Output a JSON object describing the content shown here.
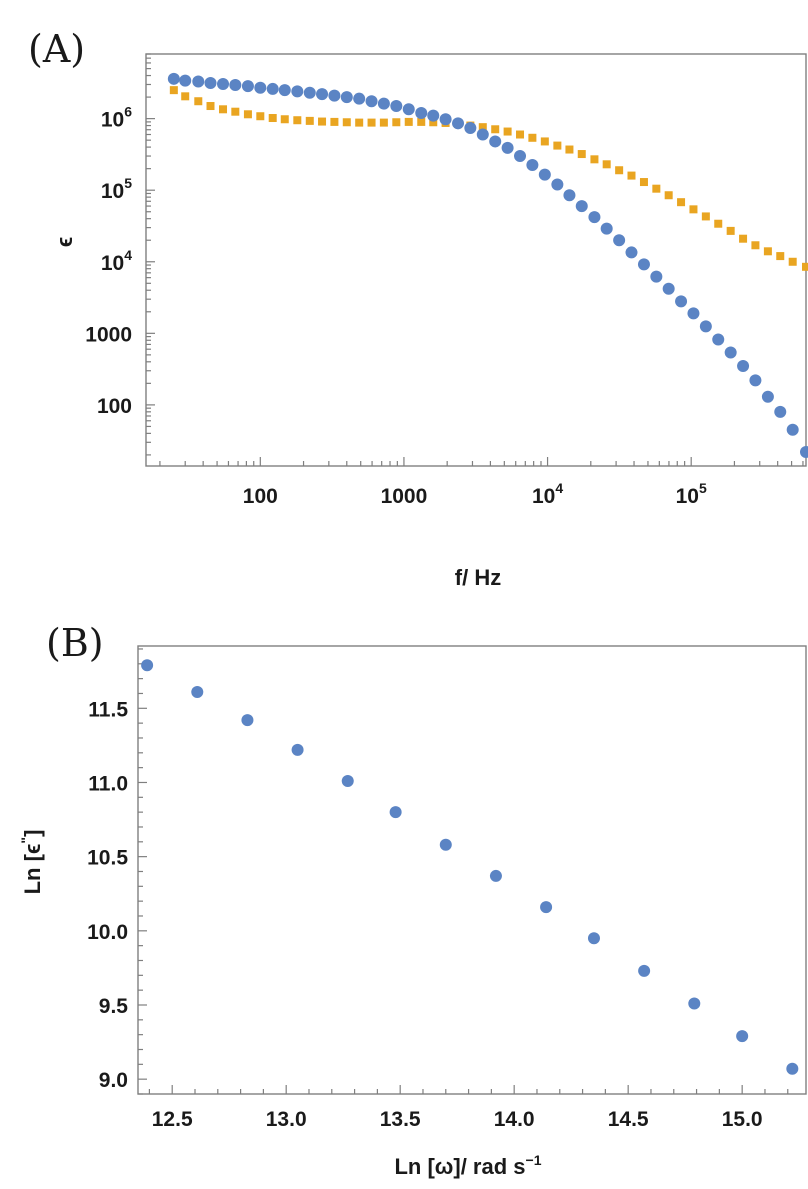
{
  "chart_data": [
    {
      "type": "scatter",
      "panel_label": "(A)",
      "xlabel": "f/ Hz",
      "ylabel": "ϵ",
      "xscale": "log",
      "yscale": "log",
      "xlim": [
        16,
        630000
      ],
      "ylim": [
        14,
        8000000
      ],
      "xticks": [
        {
          "value": 100,
          "base": "100",
          "sup": ""
        },
        {
          "value": 1000,
          "base": "1000",
          "sup": ""
        },
        {
          "value": 10000,
          "base": "10",
          "sup": "4"
        },
        {
          "value": 100000,
          "base": "10",
          "sup": "5"
        }
      ],
      "yticks": [
        {
          "value": 100,
          "base": "100",
          "sup": ""
        },
        {
          "value": 1000,
          "base": "1000",
          "sup": ""
        },
        {
          "value": 10000,
          "base": "10",
          "sup": "4"
        },
        {
          "value": 100000,
          "base": "10",
          "sup": "5"
        },
        {
          "value": 1000000,
          "base": "10",
          "sup": "6"
        }
      ],
      "colors": {
        "series1": "#5b84c4",
        "series2": "#e9a521"
      },
      "series": [
        {
          "marker": "circle",
          "x_range": [
            25,
            630000
          ],
          "points": [
            [
              25,
              3600000
            ],
            [
              30,
              3400000
            ],
            [
              37,
              3300000
            ],
            [
              45,
              3150000
            ],
            [
              55,
              3050000
            ],
            [
              67,
              2950000
            ],
            [
              82,
              2850000
            ],
            [
              100,
              2700000
            ],
            [
              122,
              2600000
            ],
            [
              148,
              2500000
            ],
            [
              181,
              2400000
            ],
            [
              221,
              2300000
            ],
            [
              269,
              2200000
            ],
            [
              328,
              2100000
            ],
            [
              400,
              2000000
            ],
            [
              488,
              1900000
            ],
            [
              595,
              1750000
            ],
            [
              725,
              1620000
            ],
            [
              885,
              1500000
            ],
            [
              1080,
              1350000
            ],
            [
              1320,
              1200000
            ],
            [
              1600,
              1100000
            ],
            [
              1950,
              980000
            ],
            [
              2380,
              860000
            ],
            [
              2900,
              740000
            ],
            [
              3540,
              600000
            ],
            [
              4320,
              480000
            ],
            [
              5270,
              390000
            ],
            [
              6430,
              300000
            ],
            [
              7840,
              225000
            ],
            [
              9570,
              165000
            ],
            [
              11700,
              120000
            ],
            [
              14200,
              85000
            ],
            [
              17300,
              60000
            ],
            [
              21200,
              42000
            ],
            [
              25800,
              29000
            ],
            [
              31500,
              20000
            ],
            [
              38400,
              13500
            ],
            [
              46900,
              9200
            ],
            [
              57200,
              6200
            ],
            [
              69700,
              4200
            ],
            [
              85000,
              2800
            ],
            [
              103700,
              1900
            ],
            [
              126500,
              1250
            ],
            [
              154300,
              820
            ],
            [
              188300,
              540
            ],
            [
              229700,
              350
            ],
            [
              280000,
              220
            ],
            [
              342000,
              130
            ],
            [
              417000,
              80
            ],
            [
              509000,
              45
            ],
            [
              630000,
              22
            ]
          ]
        },
        {
          "marker": "square",
          "x_range": [
            25,
            630000
          ],
          "points": [
            [
              25,
              2500000
            ],
            [
              30,
              2050000
            ],
            [
              37,
              1750000
            ],
            [
              45,
              1500000
            ],
            [
              55,
              1350000
            ],
            [
              67,
              1250000
            ],
            [
              82,
              1150000
            ],
            [
              100,
              1080000
            ],
            [
              122,
              1020000
            ],
            [
              148,
              980000
            ],
            [
              181,
              950000
            ],
            [
              221,
              930000
            ],
            [
              269,
              910000
            ],
            [
              328,
              900000
            ],
            [
              400,
              890000
            ],
            [
              488,
              880000
            ],
            [
              595,
              880000
            ],
            [
              725,
              880000
            ],
            [
              885,
              890000
            ],
            [
              1080,
              900000
            ],
            [
              1320,
              900000
            ],
            [
              1600,
              890000
            ],
            [
              1950,
              870000
            ],
            [
              2380,
              840000
            ],
            [
              2900,
              800000
            ],
            [
              3540,
              760000
            ],
            [
              4320,
              710000
            ],
            [
              5270,
              660000
            ],
            [
              6430,
              600000
            ],
            [
              7840,
              540000
            ],
            [
              9570,
              480000
            ],
            [
              11700,
              420000
            ],
            [
              14200,
              370000
            ],
            [
              17300,
              320000
            ],
            [
              21200,
              270000
            ],
            [
              25800,
              230000
            ],
            [
              31500,
              190000
            ],
            [
              38400,
              160000
            ],
            [
              46900,
              130000
            ],
            [
              57200,
              105000
            ],
            [
              69700,
              85000
            ],
            [
              85000,
              68000
            ],
            [
              103700,
              54000
            ],
            [
              126500,
              43000
            ],
            [
              154300,
              34000
            ],
            [
              188300,
              27000
            ],
            [
              229700,
              21000
            ],
            [
              280000,
              17000
            ],
            [
              342000,
              14000
            ],
            [
              417000,
              12000
            ],
            [
              509000,
              10000
            ],
            [
              630000,
              8500
            ]
          ]
        }
      ]
    },
    {
      "type": "scatter",
      "panel_label": "(B)",
      "xlabel": "Ln [ω]/ rad s",
      "xlabel_sup": "−1",
      "ylabel": "Ln [ϵ",
      "ylabel_sup": "\"",
      "ylabel_end": "]",
      "xlim": [
        12.35,
        15.28
      ],
      "ylim": [
        8.9,
        11.92
      ],
      "xticks": [
        "12.5",
        "13.0",
        "13.5",
        "14.0",
        "14.5",
        "15.0"
      ],
      "yticks": [
        "9.0",
        "9.5",
        "10.0",
        "10.5",
        "11.0",
        "11.5"
      ],
      "colors": {
        "series1": "#5b84c4"
      },
      "series": [
        {
          "x": [
            12.39,
            12.61,
            12.83,
            13.05,
            13.27,
            13.48,
            13.7,
            13.92,
            14.14,
            14.35,
            14.57,
            14.79,
            15.0,
            15.22
          ],
          "y": [
            11.79,
            11.61,
            11.42,
            11.22,
            11.01,
            10.8,
            10.58,
            10.37,
            10.16,
            9.95,
            9.73,
            9.51,
            9.29,
            9.07
          ]
        }
      ]
    }
  ]
}
